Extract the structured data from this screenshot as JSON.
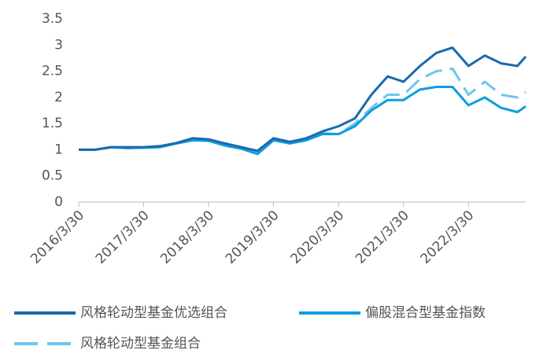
{
  "chart_data": {
    "type": "line",
    "x": [
      "2016/3/30",
      "2016/6/30",
      "2016/9/30",
      "2016/12/30",
      "2017/3/30",
      "2017/6/30",
      "2017/9/30",
      "2017/12/30",
      "2018/3/30",
      "2018/6/30",
      "2018/9/30",
      "2018/12/30",
      "2019/3/30",
      "2019/6/30",
      "2019/9/30",
      "2019/12/30",
      "2020/3/30",
      "2020/6/30",
      "2020/9/30",
      "2020/12/30",
      "2021/3/30",
      "2021/6/30",
      "2021/9/30",
      "2021/12/30",
      "2022/3/30",
      "2022/6/30",
      "2022/9/30",
      "2022/12/30",
      "2023/2/15"
    ],
    "series": [
      {
        "name": "风格轮动型基金优选组合",
        "color": "#1a6aad",
        "dash": false,
        "values": [
          1,
          1.0,
          1.05,
          1.05,
          1.05,
          1.07,
          1.13,
          1.22,
          1.2,
          1.12,
          1.05,
          0.98,
          1.22,
          1.15,
          1.22,
          1.35,
          1.45,
          1.6,
          2.05,
          2.4,
          2.3,
          2.6,
          2.85,
          2.95,
          2.6,
          2.8,
          2.65,
          2.6,
          2.78
        ]
      },
      {
        "name": "偏股混合型基金指数",
        "color": "#0e9de0",
        "dash": false,
        "values": [
          1,
          1.0,
          1.05,
          1.03,
          1.04,
          1.05,
          1.12,
          1.18,
          1.17,
          1.08,
          1.02,
          0.92,
          1.18,
          1.12,
          1.18,
          1.3,
          1.3,
          1.45,
          1.75,
          1.95,
          1.95,
          2.15,
          2.2,
          2.2,
          1.85,
          2.0,
          1.8,
          1.72,
          1.83
        ]
      },
      {
        "name": "风格轮动型基金组合",
        "color": "#6ec5ef",
        "dash": true,
        "values": [
          1,
          1.0,
          1.05,
          1.04,
          1.04,
          1.06,
          1.12,
          1.2,
          1.18,
          1.1,
          1.03,
          0.94,
          1.2,
          1.13,
          1.2,
          1.32,
          1.3,
          1.5,
          1.8,
          2.05,
          2.05,
          2.35,
          2.5,
          2.55,
          2.05,
          2.3,
          2.05,
          2.0,
          2.1
        ]
      }
    ],
    "xlim": [
      "2016/3/30",
      "2023/2/15"
    ],
    "xticks": [
      "2016/3/30",
      "2017/3/30",
      "2018/3/30",
      "2019/3/30",
      "2020/3/30",
      "2021/3/30",
      "2022/3/30"
    ],
    "ylim": [
      0,
      3.5
    ],
    "yticks": [
      0,
      0.5,
      1,
      1.5,
      2,
      2.5,
      3,
      3.5
    ],
    "grid": false,
    "legend": "bottom"
  }
}
